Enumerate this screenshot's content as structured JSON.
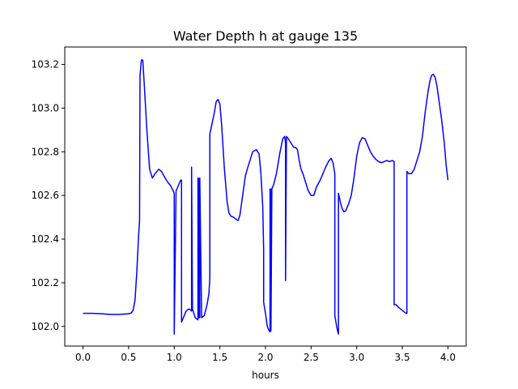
{
  "chart_data": {
    "type": "line",
    "title": "Water Depth h at gauge 135",
    "xlabel": "hours",
    "ylabel": "",
    "xlim": [
      -0.2,
      4.2
    ],
    "ylim": [
      101.91,
      103.28
    ],
    "grid": false,
    "x_ticks": [
      0.0,
      0.5,
      1.0,
      1.5,
      2.0,
      2.5,
      3.0,
      3.5,
      4.0
    ],
    "x_tick_labels": [
      "0.0",
      "0.5",
      "1.0",
      "1.5",
      "2.0",
      "2.5",
      "3.0",
      "3.5",
      "4.0"
    ],
    "y_ticks": [
      102.0,
      102.2,
      102.4,
      102.6,
      102.8,
      103.0,
      103.2
    ],
    "y_tick_labels": [
      "102.0",
      "102.2",
      "102.4",
      "102.6",
      "102.8",
      "103.0",
      "103.2"
    ],
    "series": [
      {
        "color": "#0000ff",
        "x": [
          0.0,
          0.1,
          0.2,
          0.3,
          0.4,
          0.5,
          0.53,
          0.55,
          0.57,
          0.59,
          0.61,
          0.62,
          0.625,
          0.64,
          0.655,
          0.67,
          0.7,
          0.73,
          0.76,
          0.79,
          0.83,
          0.86,
          0.9,
          0.93,
          0.96,
          0.99,
          1.0,
          1.0,
          1.02,
          1.04,
          1.06,
          1.07,
          1.08,
          1.08,
          1.1,
          1.13,
          1.16,
          1.18,
          1.19,
          1.19,
          1.2,
          1.23,
          1.26,
          1.26,
          1.27,
          1.27,
          1.28,
          1.28,
          1.3,
          1.33,
          1.36,
          1.38,
          1.39,
          1.39,
          1.41,
          1.44,
          1.46,
          1.48,
          1.5,
          1.52,
          1.55,
          1.58,
          1.6,
          1.62,
          1.65,
          1.68,
          1.7,
          1.72,
          1.75,
          1.78,
          1.8,
          1.83,
          1.86,
          1.9,
          1.93,
          1.95,
          1.97,
          1.98,
          1.98,
          2.0,
          2.02,
          2.04,
          2.05,
          2.05,
          2.06,
          2.06,
          2.07,
          2.09,
          2.12,
          2.16,
          2.19,
          2.21,
          2.22,
          2.22,
          2.23,
          2.25,
          2.28,
          2.31,
          2.33,
          2.35,
          2.37,
          2.39,
          2.41,
          2.44,
          2.47,
          2.5,
          2.53,
          2.56,
          2.6,
          2.63,
          2.66,
          2.69,
          2.72,
          2.74,
          2.76,
          2.76,
          2.78,
          2.79,
          2.8,
          2.8,
          2.82,
          2.84,
          2.86,
          2.88,
          2.91,
          2.94,
          2.97,
          3.0,
          3.03,
          3.06,
          3.09,
          3.12,
          3.15,
          3.18,
          3.21,
          3.24,
          3.27,
          3.3,
          3.33,
          3.36,
          3.39,
          3.41,
          3.41,
          3.43,
          3.45,
          3.48,
          3.51,
          3.54,
          3.55,
          3.55,
          3.57,
          3.6,
          3.63,
          3.66,
          3.69,
          3.72,
          3.75,
          3.78,
          3.8,
          3.82,
          3.84,
          3.86,
          3.88,
          3.9,
          3.93,
          3.96,
          3.98,
          4.0
        ],
        "y": [
          102.06,
          102.06,
          102.058,
          102.055,
          102.055,
          102.058,
          102.062,
          102.075,
          102.12,
          102.25,
          102.42,
          102.48,
          103.15,
          103.22,
          103.22,
          103.12,
          102.9,
          102.72,
          102.68,
          102.7,
          102.72,
          102.71,
          102.68,
          102.66,
          102.645,
          102.62,
          102.61,
          101.965,
          102.62,
          102.64,
          102.66,
          102.67,
          102.67,
          102.02,
          102.04,
          102.07,
          102.08,
          102.075,
          102.07,
          102.73,
          102.08,
          102.04,
          102.03,
          102.68,
          102.675,
          102.04,
          102.04,
          102.68,
          102.04,
          102.05,
          102.1,
          102.15,
          102.22,
          102.88,
          102.92,
          102.98,
          103.03,
          103.04,
          103.02,
          102.92,
          102.72,
          102.57,
          102.52,
          102.505,
          102.5,
          102.49,
          102.485,
          102.51,
          102.6,
          102.69,
          102.72,
          102.76,
          102.8,
          102.81,
          102.79,
          102.7,
          102.55,
          102.35,
          102.11,
          102.06,
          102.0,
          101.98,
          101.975,
          102.63,
          102.628,
          101.98,
          102.63,
          102.65,
          102.7,
          102.8,
          102.86,
          102.87,
          102.84,
          102.21,
          102.87,
          102.86,
          102.84,
          102.82,
          102.82,
          102.81,
          102.76,
          102.72,
          102.7,
          102.66,
          102.62,
          102.6,
          102.6,
          102.64,
          102.67,
          102.7,
          102.73,
          102.755,
          102.77,
          102.75,
          102.7,
          102.05,
          102.0,
          101.98,
          101.965,
          102.61,
          102.57,
          102.54,
          102.525,
          102.53,
          102.56,
          102.6,
          102.68,
          102.78,
          102.84,
          102.865,
          102.86,
          102.83,
          102.8,
          102.78,
          102.765,
          102.755,
          102.75,
          102.755,
          102.76,
          102.755,
          102.76,
          102.755,
          102.1,
          102.1,
          102.09,
          102.08,
          102.07,
          102.06,
          102.06,
          102.71,
          102.7,
          102.7,
          102.72,
          102.76,
          102.8,
          102.87,
          102.98,
          103.07,
          103.12,
          103.15,
          103.155,
          103.14,
          103.1,
          103.04,
          102.95,
          102.84,
          102.74,
          102.67
        ]
      }
    ]
  }
}
